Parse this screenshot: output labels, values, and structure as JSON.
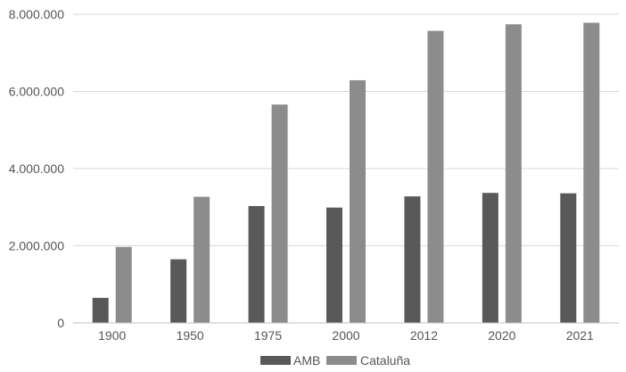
{
  "chart_data": {
    "type": "bar",
    "title": "",
    "xlabel": "",
    "ylabel": "",
    "categories": [
      "1900",
      "1950",
      "1975",
      "2000",
      "2012",
      "2020",
      "2021"
    ],
    "series": [
      {
        "name": "AMB",
        "color": "#595959",
        "values": [
          650000,
          1650000,
          3030000,
          2990000,
          3280000,
          3370000,
          3360000
        ]
      },
      {
        "name": "Cataluña",
        "color": "#8c8c8c",
        "values": [
          1970000,
          3270000,
          5660000,
          6290000,
          7570000,
          7740000,
          7780000
        ]
      }
    ],
    "ylim": [
      0,
      8000000
    ],
    "yticks": [
      0,
      2000000,
      4000000,
      6000000,
      8000000
    ],
    "ytick_labels": [
      "0",
      "2.000.000",
      "4.000.000",
      "6.000.000",
      "8.000.000"
    ],
    "grid": "horizontal",
    "legend_position": "bottom-center",
    "colors": {
      "grid": "#d9d9d9",
      "axis": "#bfbfbf",
      "text": "#555555"
    }
  }
}
